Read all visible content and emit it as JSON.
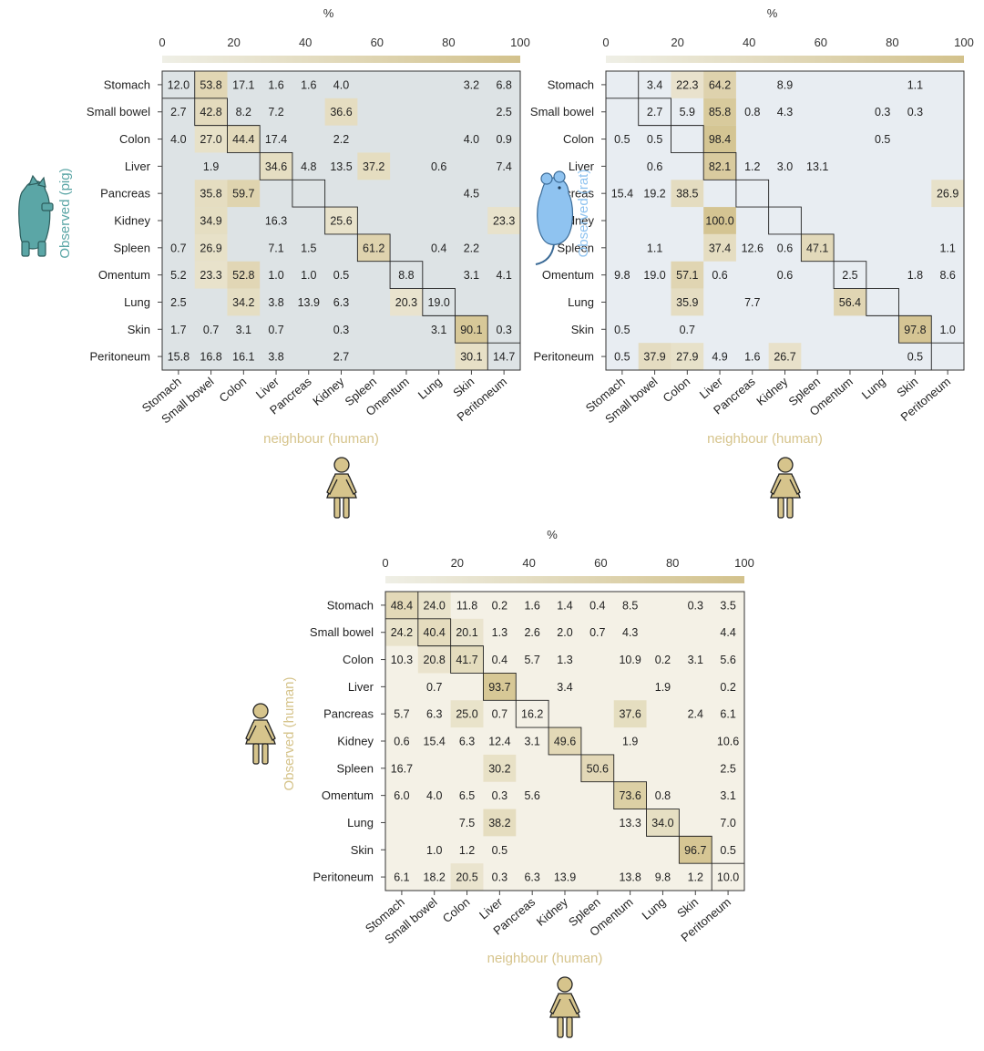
{
  "colors": {
    "scale_low": "#efebdc",
    "scale_high": "#d3c28c",
    "pig_bg": "#dde3e5",
    "rat_bg": "#e8edf2",
    "human_bg": "#f4f1e6",
    "pig_accent": "#5ba6a6",
    "rat_accent": "#8fc3f0",
    "human_accent": "#d6c48c",
    "cell_text": "#222222",
    "frame": "#333333"
  },
  "icons": {
    "pig": "pig-icon",
    "rat": "rat-icon",
    "human": "human-icon"
  },
  "chart_data": [
    {
      "id": "pig",
      "type": "heatmap",
      "colorbar": {
        "label": "%",
        "ticks": [
          "0",
          "20",
          "40",
          "60",
          "80",
          "100"
        ],
        "range": [
          0,
          100
        ]
      },
      "ylabel": "Observed (pig)",
      "xlabel": "neighbour (human)",
      "rows": [
        "Stomach",
        "Small bowel",
        "Colon",
        "Liver",
        "Pancreas",
        "Kidney",
        "Spleen",
        "Omentum",
        "Lung",
        "Skin",
        "Peritoneum"
      ],
      "cols": [
        "Stomach",
        "Small bowel",
        "Colon",
        "Liver",
        "Pancreas",
        "Kidney",
        "Spleen",
        "Omentum",
        "Lung",
        "Skin",
        "Peritoneum"
      ],
      "values": [
        [
          "12.0",
          "53.8",
          "17.1",
          "1.6",
          "1.6",
          "4.0",
          "",
          "",
          "",
          "3.2",
          "6.8"
        ],
        [
          "2.7",
          "42.8",
          "8.2",
          "7.2",
          "",
          "36.6",
          "",
          "",
          "",
          "",
          "2.5"
        ],
        [
          "4.0",
          "27.0",
          "44.4",
          "17.4",
          "",
          "2.2",
          "",
          "",
          "",
          "4.0",
          "0.9"
        ],
        [
          "",
          "1.9",
          "",
          "34.6",
          "4.8",
          "13.5",
          "37.2",
          "",
          "0.6",
          "",
          "7.4"
        ],
        [
          "",
          "35.8",
          "59.7",
          "",
          "",
          "",
          "",
          "",
          "",
          "4.5",
          ""
        ],
        [
          "",
          "34.9",
          "",
          "16.3",
          "",
          "25.6",
          "",
          "",
          "",
          "",
          "23.3"
        ],
        [
          "0.7",
          "26.9",
          "",
          "7.1",
          "1.5",
          "",
          "61.2",
          "",
          "0.4",
          "2.2",
          ""
        ],
        [
          "5.2",
          "23.3",
          "52.8",
          "1.0",
          "1.0",
          "0.5",
          "",
          "8.8",
          "",
          "3.1",
          "4.1"
        ],
        [
          "2.5",
          "",
          "34.2",
          "3.8",
          "13.9",
          "6.3",
          "",
          "20.3",
          "19.0",
          "",
          ""
        ],
        [
          "1.7",
          "0.7",
          "3.1",
          "0.7",
          "",
          "0.3",
          "",
          "",
          "3.1",
          "90.1",
          "0.3"
        ],
        [
          "15.8",
          "16.8",
          "16.1",
          "3.8",
          "",
          "2.7",
          "",
          "",
          "",
          "30.1",
          "14.7"
        ]
      ]
    },
    {
      "id": "rat",
      "type": "heatmap",
      "colorbar": {
        "label": "%",
        "ticks": [
          "0",
          "20",
          "40",
          "60",
          "80",
          "100"
        ],
        "range": [
          0,
          100
        ]
      },
      "ylabel": "Observed (rat)",
      "xlabel": "neighbour (human)",
      "rows": [
        "Stomach",
        "Small bowel",
        "Colon",
        "Liver",
        "Pancreas",
        "Kidney",
        "Spleen",
        "Omentum",
        "Lung",
        "Skin",
        "Peritoneum"
      ],
      "cols": [
        "Stomach",
        "Small bowel",
        "Colon",
        "Liver",
        "Pancreas",
        "Kidney",
        "Spleen",
        "Omentum",
        "Lung",
        "Skin",
        "Peritoneum"
      ],
      "values": [
        [
          "",
          "3.4",
          "22.3",
          "64.2",
          "",
          "8.9",
          "",
          "",
          "",
          "1.1",
          ""
        ],
        [
          "",
          "2.7",
          "5.9",
          "85.8",
          "0.8",
          "4.3",
          "",
          "",
          "0.3",
          "0.3",
          ""
        ],
        [
          "0.5",
          "0.5",
          "",
          "98.4",
          "",
          "",
          "",
          "",
          "0.5",
          "",
          ""
        ],
        [
          "",
          "0.6",
          "",
          "82.1",
          "1.2",
          "3.0",
          "13.1",
          "",
          "",
          "",
          ""
        ],
        [
          "15.4",
          "19.2",
          "38.5",
          "",
          "",
          "",
          "",
          "",
          "",
          "",
          "26.9"
        ],
        [
          "",
          "",
          "",
          "100.0",
          "",
          "",
          "",
          "",
          "",
          "",
          ""
        ],
        [
          "",
          "1.1",
          "",
          "37.4",
          "12.6",
          "0.6",
          "47.1",
          "",
          "",
          "",
          "1.1"
        ],
        [
          "9.8",
          "19.0",
          "57.1",
          "0.6",
          "",
          "0.6",
          "",
          "2.5",
          "",
          "1.8",
          "8.6"
        ],
        [
          "",
          "",
          "35.9",
          "",
          "7.7",
          "",
          "",
          "56.4",
          "",
          "",
          ""
        ],
        [
          "0.5",
          "",
          "0.7",
          "",
          "",
          "",
          "",
          "",
          "",
          "97.8",
          "1.0"
        ],
        [
          "0.5",
          "37.9",
          "27.9",
          "4.9",
          "1.6",
          "26.7",
          "",
          "",
          "",
          "0.5",
          ""
        ]
      ]
    },
    {
      "id": "human",
      "type": "heatmap",
      "colorbar": {
        "label": "%",
        "ticks": [
          "0",
          "20",
          "40",
          "60",
          "80",
          "100"
        ],
        "range": [
          0,
          100
        ]
      },
      "ylabel": "Observed (human)",
      "xlabel": "neighbour (human)",
      "rows": [
        "Stomach",
        "Small bowel",
        "Colon",
        "Liver",
        "Pancreas",
        "Kidney",
        "Spleen",
        "Omentum",
        "Lung",
        "Skin",
        "Peritoneum"
      ],
      "cols": [
        "Stomach",
        "Small bowel",
        "Colon",
        "Liver",
        "Pancreas",
        "Kidney",
        "Spleen",
        "Omentum",
        "Lung",
        "Skin",
        "Peritoneum"
      ],
      "values": [
        [
          "48.4",
          "24.0",
          "11.8",
          "0.2",
          "1.6",
          "1.4",
          "0.4",
          "8.5",
          "",
          "0.3",
          "3.5"
        ],
        [
          "24.2",
          "40.4",
          "20.1",
          "1.3",
          "2.6",
          "2.0",
          "0.7",
          "4.3",
          "",
          "",
          "4.4"
        ],
        [
          "10.3",
          "20.8",
          "41.7",
          "0.4",
          "5.7",
          "1.3",
          "",
          "10.9",
          "0.2",
          "3.1",
          "5.6"
        ],
        [
          "",
          "0.7",
          "",
          "93.7",
          "",
          "3.4",
          "",
          "",
          "1.9",
          "",
          "0.2"
        ],
        [
          "5.7",
          "6.3",
          "25.0",
          "0.7",
          "16.2",
          "",
          "",
          "37.6",
          "",
          "2.4",
          "6.1"
        ],
        [
          "0.6",
          "15.4",
          "6.3",
          "12.4",
          "3.1",
          "49.6",
          "",
          "1.9",
          "",
          "",
          "10.6"
        ],
        [
          "16.7",
          "",
          "",
          "30.2",
          "",
          "",
          "50.6",
          "",
          "",
          "",
          "2.5"
        ],
        [
          "6.0",
          "4.0",
          "6.5",
          "0.3",
          "5.6",
          "",
          "",
          "73.6",
          "0.8",
          "",
          "3.1"
        ],
        [
          "",
          "",
          "7.5",
          "38.2",
          "",
          "",
          "",
          "13.3",
          "34.0",
          "",
          "7.0"
        ],
        [
          "",
          "1.0",
          "1.2",
          "0.5",
          "",
          "",
          "",
          "",
          "",
          "96.7",
          "0.5"
        ],
        [
          "6.1",
          "18.2",
          "20.5",
          "0.3",
          "6.3",
          "13.9",
          "",
          "13.8",
          "9.8",
          "1.2",
          "10.0"
        ]
      ]
    }
  ]
}
